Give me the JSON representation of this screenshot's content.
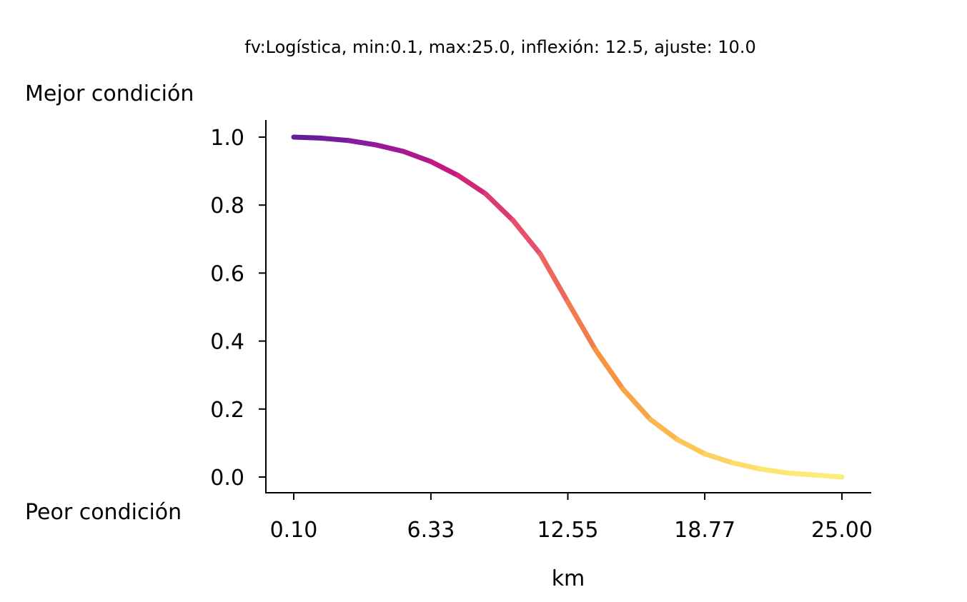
{
  "chart_data": {
    "type": "line",
    "title": "fv:Logística, min:0.1, max:25.0, inflexión: 12.5, ajuste: 10.0",
    "xlabel": "km",
    "ylabel_top": "Mejor condición",
    "ylabel_bottom": "Peor condición",
    "xlim": [
      0.1,
      25.0
    ],
    "ylim": [
      0.0,
      1.0
    ],
    "x_ticks": [
      0.1,
      6.33,
      12.55,
      18.77,
      25.0
    ],
    "x_tick_labels": [
      "0.10",
      "6.33",
      "12.55",
      "18.77",
      "25.00"
    ],
    "y_ticks": [
      0.0,
      0.2,
      0.4,
      0.6,
      0.8,
      1.0
    ],
    "y_tick_labels": [
      "0.0",
      "0.2",
      "0.4",
      "0.6",
      "0.8",
      "1.0"
    ],
    "grid": false,
    "colormap": "plasma",
    "colors": [
      "#5b1f96",
      "#8e1aa0",
      "#c7177e",
      "#e8506a",
      "#f6933f",
      "#fbc455",
      "#fde471",
      "#fcef79"
    ],
    "series": [
      {
        "x": [
          0.1,
          1.35,
          2.59,
          3.84,
          5.08,
          6.33,
          7.57,
          8.82,
          10.06,
          11.31,
          12.55,
          13.8,
          15.04,
          16.29,
          17.53,
          18.78,
          20.02,
          21.27,
          22.51,
          23.76,
          25.0
        ],
        "y": [
          1.0,
          0.997,
          0.99,
          0.977,
          0.958,
          0.928,
          0.887,
          0.833,
          0.755,
          0.655,
          0.515,
          0.375,
          0.26,
          0.17,
          0.11,
          0.068,
          0.042,
          0.024,
          0.012,
          0.006,
          0.0
        ]
      }
    ]
  }
}
